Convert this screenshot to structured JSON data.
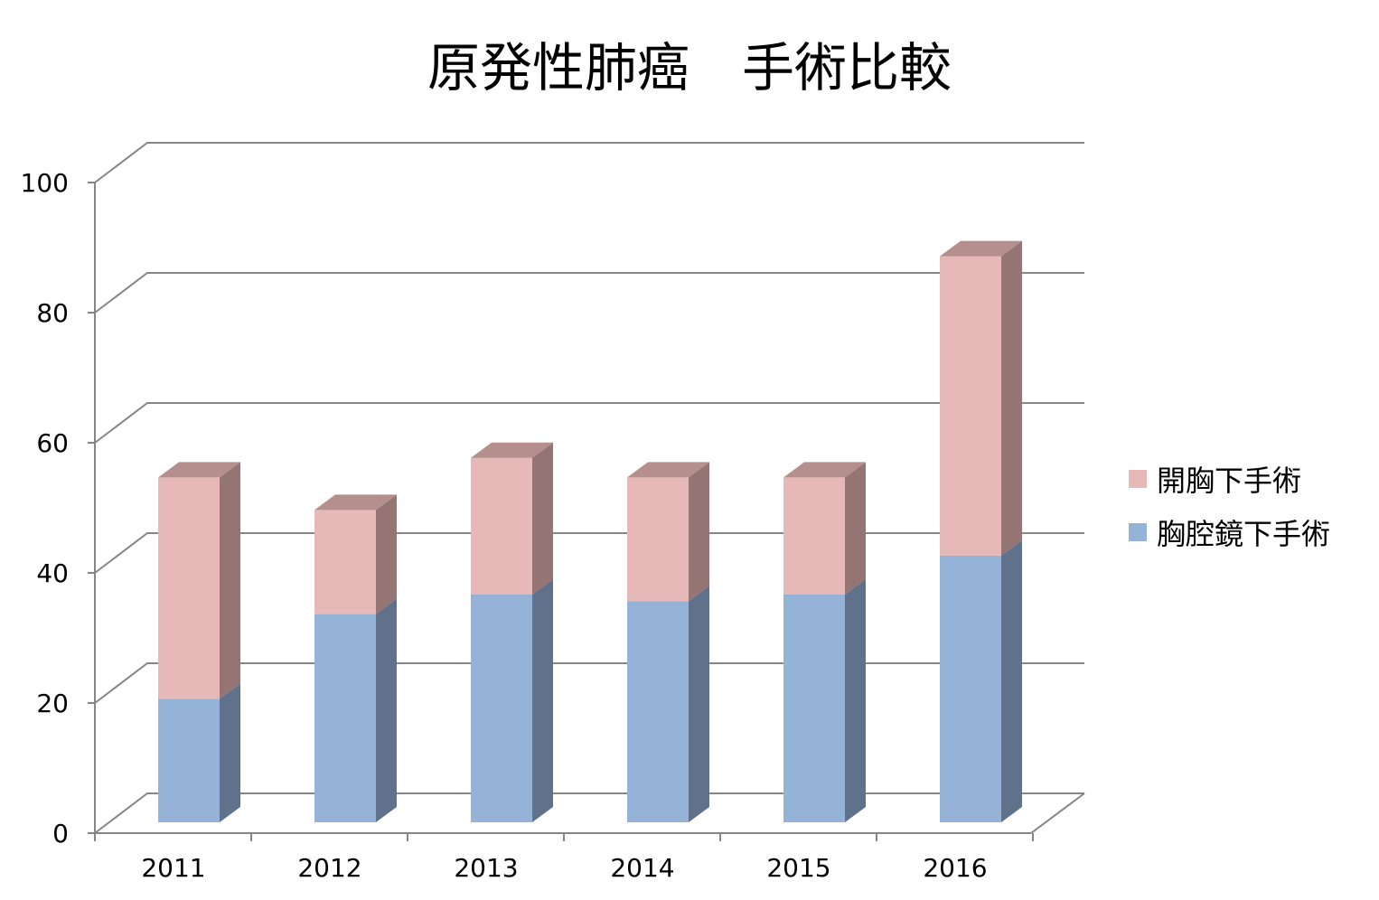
{
  "chart_data": {
    "type": "bar",
    "stacked": true,
    "three_d": true,
    "title": "原発性肺癌　手術比較",
    "xlabel": "",
    "ylabel": "",
    "categories": [
      "2011",
      "2012",
      "2013",
      "2014",
      "2015",
      "2016"
    ],
    "series": [
      {
        "name": "胸腔鏡下手術",
        "values": [
          19,
          32,
          35,
          34,
          35,
          41
        ],
        "color_front": "#95B3D7",
        "color_top": "#7F98B8",
        "color_side": "#60728B"
      },
      {
        "name": "開胸下手術",
        "values": [
          34,
          16,
          21,
          19,
          18,
          46
        ],
        "color_front": "#E6B9B8",
        "color_top": "#B48F8D",
        "color_side": "#957573"
      }
    ],
    "ylim": [
      0,
      100
    ],
    "yticks": [
      "0",
      "20",
      "40",
      "60",
      "80",
      "100"
    ],
    "grid": true,
    "legend_position": "right"
  }
}
